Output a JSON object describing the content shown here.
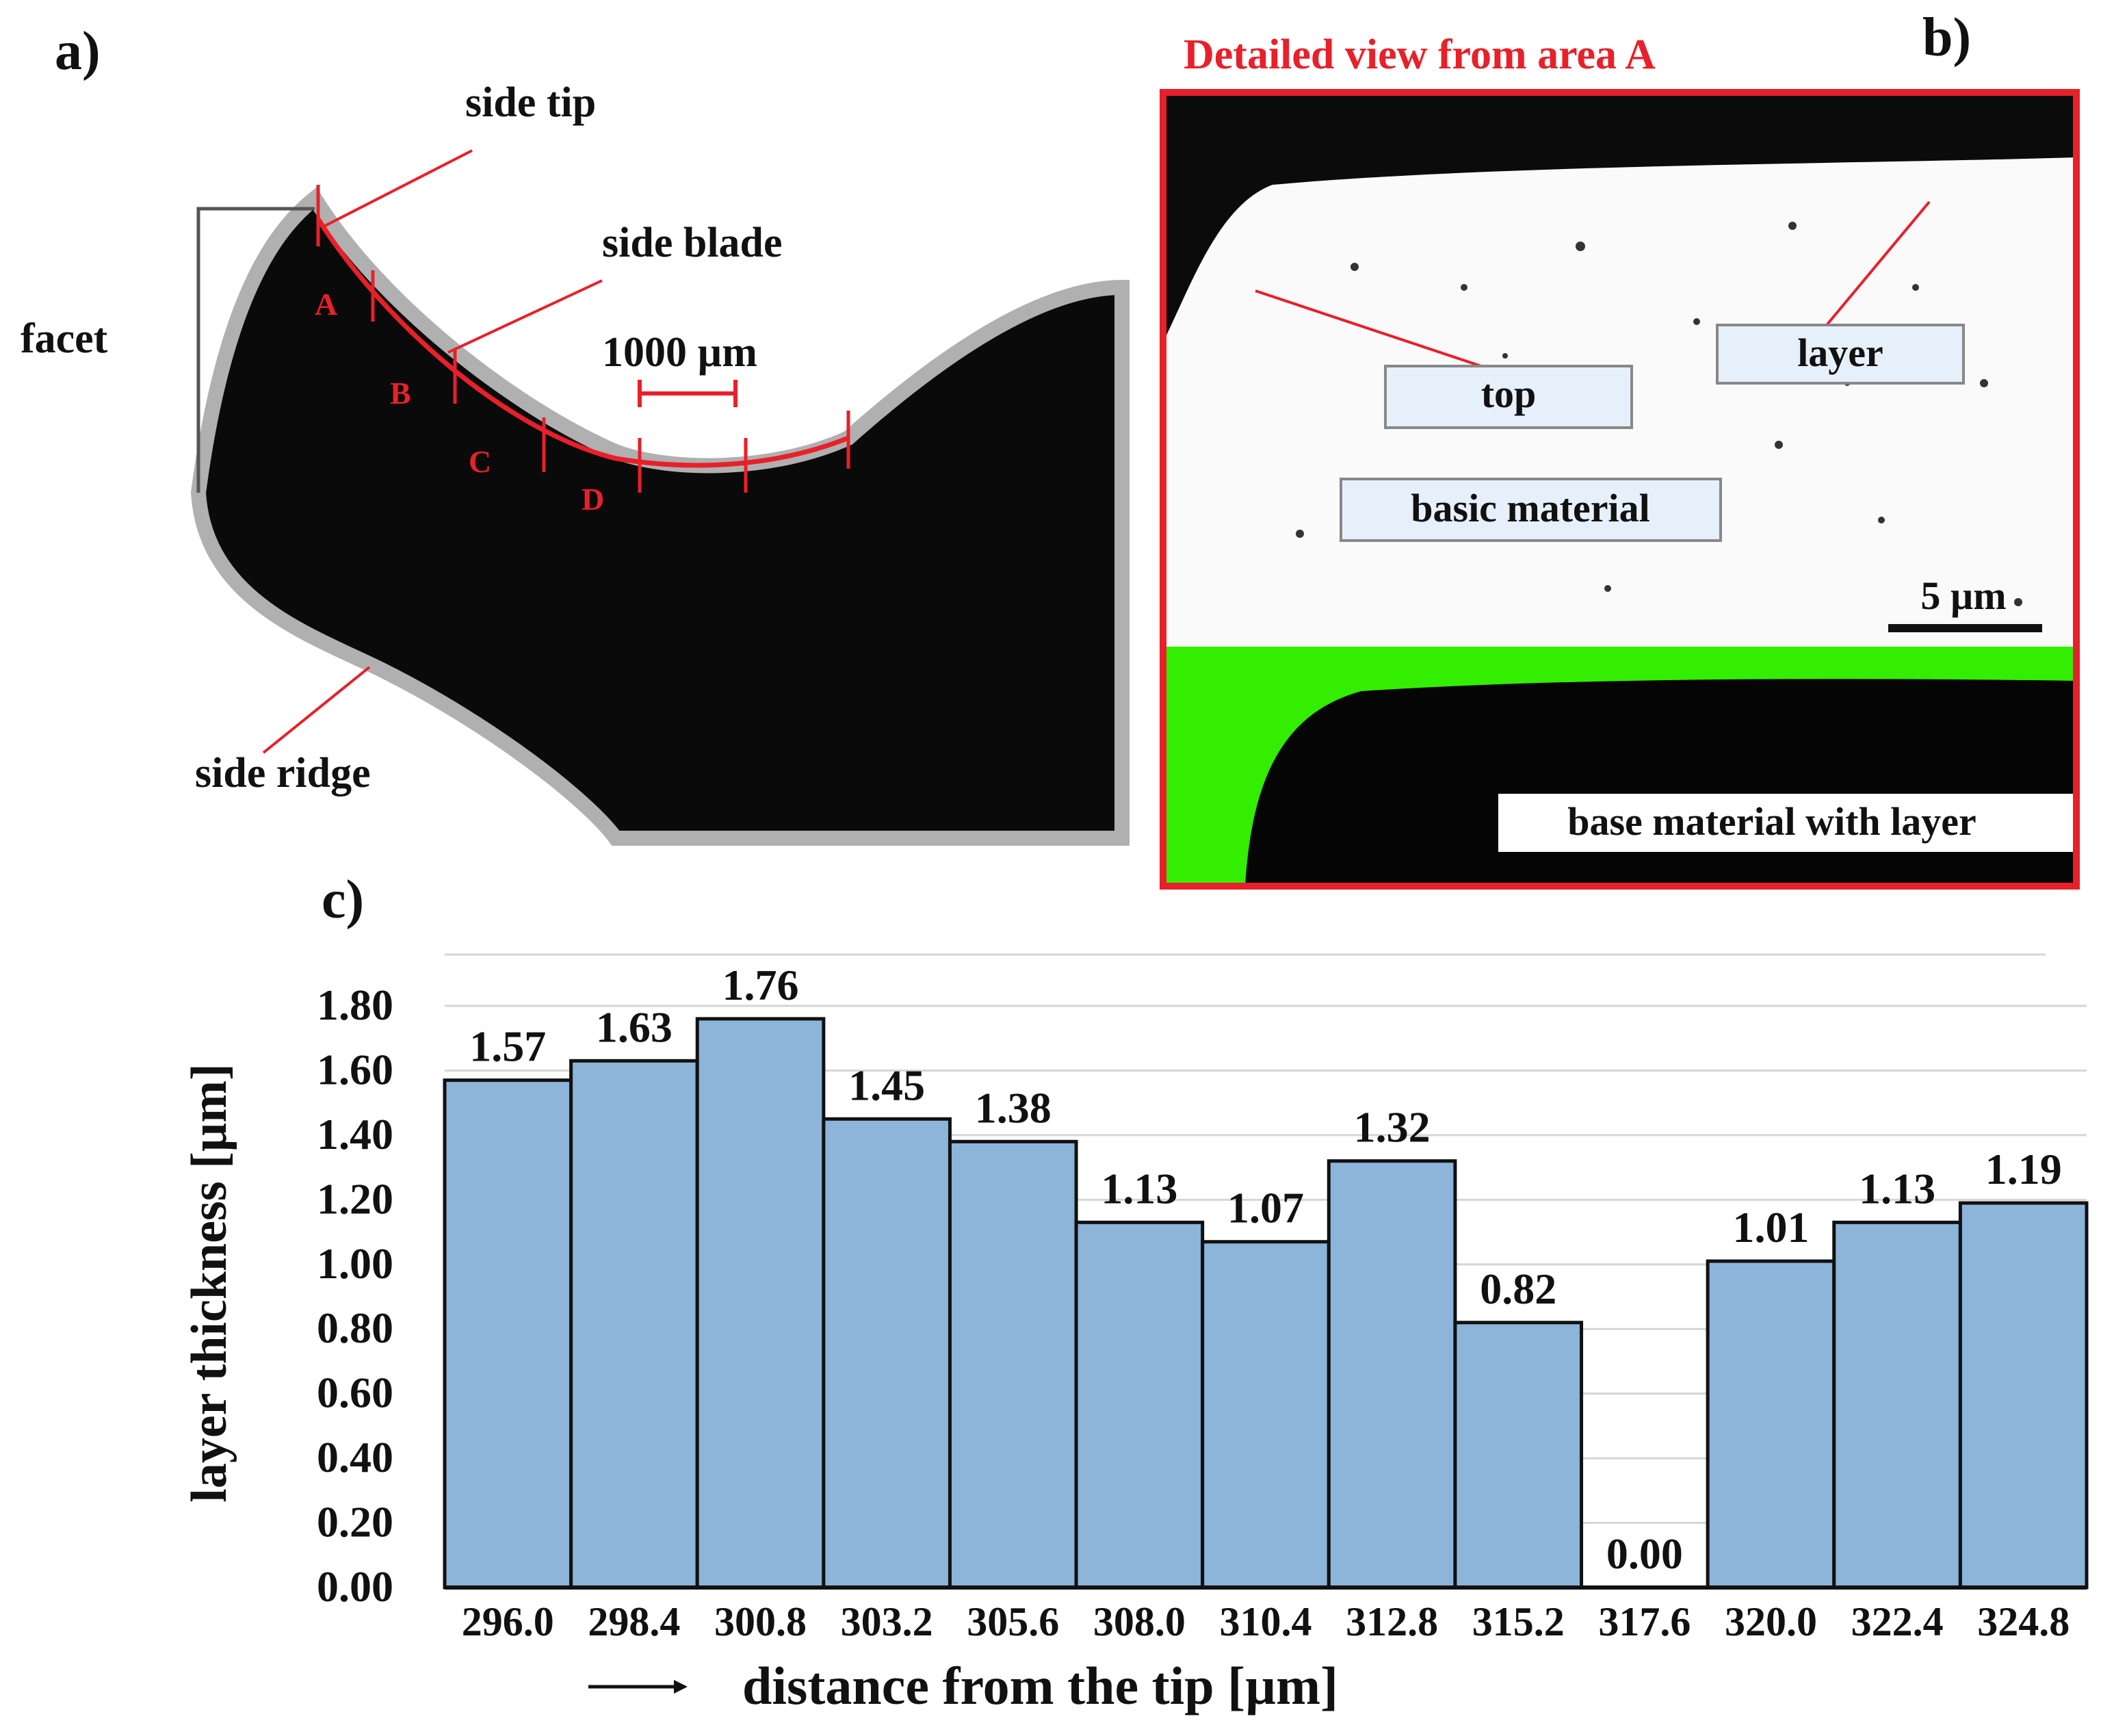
{
  "panels": {
    "a": {
      "label": "a)",
      "annotations": {
        "side_tip": "side tip",
        "side_blade": "side blade",
        "facet": "facet",
        "scale_bar": "1000 µm",
        "side_ridge": "side ridge"
      },
      "section_letters": [
        "A",
        "B",
        "C",
        "D"
      ]
    },
    "b": {
      "label": "b)",
      "title": "Detailed view from area A",
      "labels": {
        "top": "top",
        "layer": "layer",
        "basic_material": "basic material",
        "scale_bar": "5 µm",
        "base_material_with_layer": "base material with layer"
      }
    },
    "c": {
      "label": "c)"
    }
  },
  "chart_data": {
    "type": "bar",
    "xlabel": "distance from the tip [µm]",
    "ylabel": "layer thickness [µm]",
    "ylim": [
      0,
      1.8
    ],
    "y_ticks": [
      "0.00",
      "0.20",
      "0.40",
      "0.60",
      "0.80",
      "1.00",
      "1.20",
      "1.40",
      "1.60",
      "1.80"
    ],
    "categories": [
      "296.0",
      "298.4",
      "300.8",
      "303.2",
      "305.6",
      "308.0",
      "310.4",
      "312.8",
      "315.2",
      "317.6",
      "320.0",
      "322.4",
      "324.8"
    ],
    "values": [
      1.57,
      1.63,
      1.76,
      1.45,
      1.38,
      1.13,
      1.07,
      1.32,
      0.82,
      0.0,
      1.01,
      1.13,
      1.19
    ],
    "data_labels": [
      "1.57",
      "1.63",
      "1.76",
      "1.45",
      "1.38",
      "1.13",
      "1.07",
      "1.32",
      "0.82",
      "0.00",
      "1.01",
      "1.13",
      "1.19"
    ],
    "grid": true,
    "bar_color": "#8db4d9",
    "bar_edge_color": "#111111"
  },
  "colors": {
    "accent_red": "#e8202a",
    "highlight_green": "#33ee00",
    "label_box_fill": "#e6f0fb"
  }
}
